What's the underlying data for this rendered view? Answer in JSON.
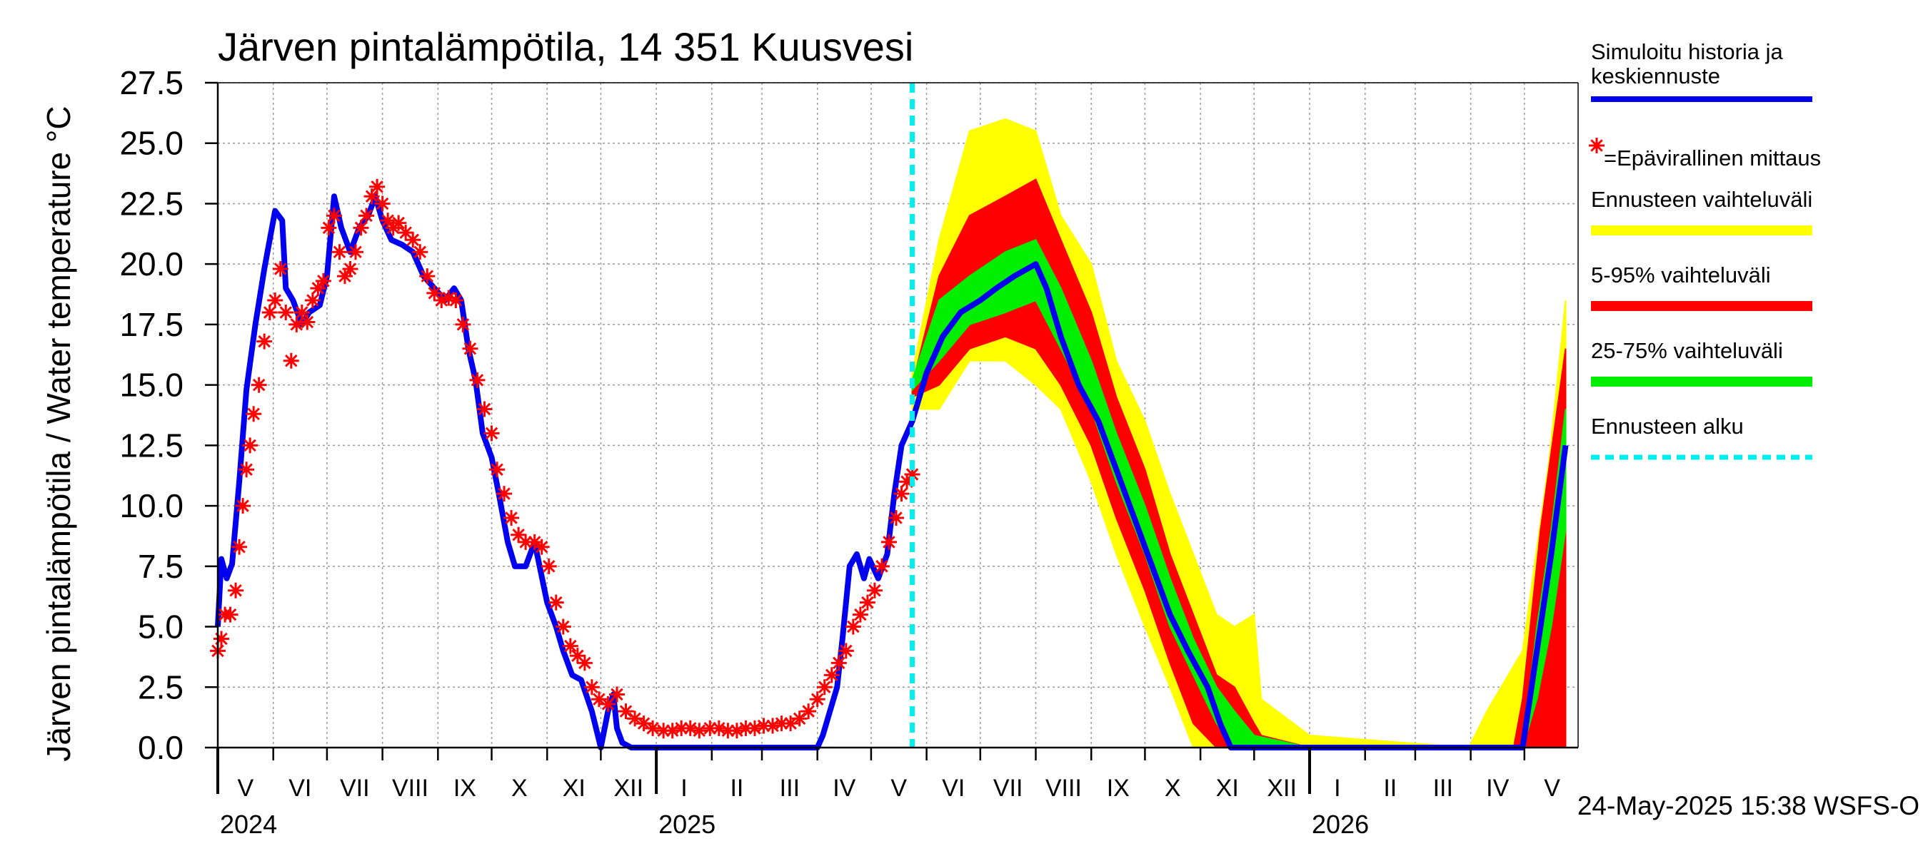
{
  "chart_data": {
    "type": "line",
    "title": "Järven pintalämpötila, 14 351 Kuusvesi",
    "ylabel": "Järven pintalämpötila / Water temperature °C",
    "xlabel": "",
    "ylim": [
      0,
      27.5
    ],
    "yticks": [
      "0.0",
      "2.5",
      "5.0",
      "7.5",
      "10.0",
      "12.5",
      "15.0",
      "17.5",
      "20.0",
      "22.5",
      "25.0",
      "27.5"
    ],
    "month_labels": [
      "V",
      "VI",
      "VII",
      "VIII",
      "IX",
      "X",
      "XI",
      "XII",
      "I",
      "II",
      "III",
      "IV",
      "V",
      "VI",
      "VII",
      "VIII",
      "IX",
      "X",
      "XI",
      "XII",
      "I",
      "II",
      "III",
      "IV",
      "V"
    ],
    "year_labels": [
      "2024",
      "2025",
      "2026"
    ],
    "forecast_start": "2025-05-24",
    "grid": true,
    "legend_position": "right",
    "legend": [
      {
        "label": "Simuloitu historia ja keskiennuste",
        "color": "#0000ee",
        "kind": "line"
      },
      {
        "label": "=Epävirallinen mittaus",
        "color": "#ff0000",
        "kind": "marker"
      },
      {
        "label": "Ennusteen vaihteluväli",
        "color": "#ffff00",
        "kind": "band"
      },
      {
        "label": "5-95% vaihteluväli",
        "color": "#ff0000",
        "kind": "band"
      },
      {
        "label": "25-75% vaihteluväli",
        "color": "#00ee00",
        "kind": "band"
      },
      {
        "label": "Ennusteen alku",
        "color": "#00eeee",
        "kind": "dashed"
      }
    ],
    "series": [
      {
        "name": "Simuloitu historia ja keskiennuste",
        "color": "#0000ee",
        "points": [
          [
            "2024-05-01",
            5.0
          ],
          [
            "2024-05-03",
            7.8
          ],
          [
            "2024-05-06",
            7.0
          ],
          [
            "2024-05-09",
            7.6
          ],
          [
            "2024-05-13",
            11.0
          ],
          [
            "2024-05-17",
            14.8
          ],
          [
            "2024-05-22",
            17.5
          ],
          [
            "2024-05-27",
            19.8
          ],
          [
            "2024-06-02",
            22.2
          ],
          [
            "2024-06-06",
            21.8
          ],
          [
            "2024-06-08",
            19.0
          ],
          [
            "2024-06-12",
            18.5
          ],
          [
            "2024-06-17",
            17.5
          ],
          [
            "2024-06-21",
            18.0
          ],
          [
            "2024-06-27",
            18.3
          ],
          [
            "2024-07-01",
            19.5
          ],
          [
            "2024-07-05",
            22.8
          ],
          [
            "2024-07-09",
            21.5
          ],
          [
            "2024-07-14",
            20.5
          ],
          [
            "2024-07-19",
            21.5
          ],
          [
            "2024-07-24",
            22.0
          ],
          [
            "2024-07-28",
            22.8
          ],
          [
            "2024-08-01",
            21.8
          ],
          [
            "2024-08-06",
            21.0
          ],
          [
            "2024-08-12",
            20.8
          ],
          [
            "2024-08-18",
            20.5
          ],
          [
            "2024-08-24",
            19.5
          ],
          [
            "2024-08-30",
            19.0
          ],
          [
            "2024-09-05",
            18.5
          ],
          [
            "2024-09-10",
            19.0
          ],
          [
            "2024-09-14",
            18.5
          ],
          [
            "2024-09-18",
            16.5
          ],
          [
            "2024-09-22",
            15.2
          ],
          [
            "2024-09-26",
            13.0
          ],
          [
            "2024-10-01",
            12.0
          ],
          [
            "2024-10-05",
            10.5
          ],
          [
            "2024-10-10",
            8.5
          ],
          [
            "2024-10-14",
            7.5
          ],
          [
            "2024-10-20",
            7.5
          ],
          [
            "2024-10-25",
            8.5
          ],
          [
            "2024-11-01",
            6.0
          ],
          [
            "2024-11-06",
            5.0
          ],
          [
            "2024-11-10",
            4.0
          ],
          [
            "2024-11-15",
            3.0
          ],
          [
            "2024-11-20",
            2.8
          ],
          [
            "2024-11-26",
            1.5
          ],
          [
            "2024-12-01",
            0.0
          ],
          [
            "2024-12-05",
            1.5
          ],
          [
            "2024-12-08",
            2.2
          ],
          [
            "2024-12-10",
            0.8
          ],
          [
            "2024-12-13",
            0.2
          ],
          [
            "2024-12-18",
            0.0
          ],
          [
            "2025-01-01",
            0.0
          ],
          [
            "2025-02-01",
            0.0
          ],
          [
            "2025-03-01",
            0.0
          ],
          [
            "2025-04-01",
            0.0
          ],
          [
            "2025-04-04",
            0.5
          ],
          [
            "2025-04-08",
            1.5
          ],
          [
            "2025-04-12",
            2.5
          ],
          [
            "2025-04-15",
            4.5
          ],
          [
            "2025-04-19",
            7.5
          ],
          [
            "2025-04-23",
            8.0
          ],
          [
            "2025-04-27",
            7.0
          ],
          [
            "2025-04-30",
            7.8
          ],
          [
            "2025-05-05",
            7.0
          ],
          [
            "2025-05-10",
            8.0
          ],
          [
            "2025-05-14",
            10.5
          ],
          [
            "2025-05-18",
            12.5
          ],
          [
            "2025-05-24",
            13.5
          ],
          [
            "2025-06-01",
            15.5
          ],
          [
            "2025-06-10",
            17.0
          ],
          [
            "2025-06-20",
            18.0
          ],
          [
            "2025-07-01",
            18.5
          ],
          [
            "2025-07-10",
            19.0
          ],
          [
            "2025-07-20",
            19.5
          ],
          [
            "2025-08-01",
            20.0
          ],
          [
            "2025-08-07",
            19.0
          ],
          [
            "2025-08-15",
            17.0
          ],
          [
            "2025-08-25",
            15.0
          ],
          [
            "2025-09-05",
            13.5
          ],
          [
            "2025-09-15",
            11.5
          ],
          [
            "2025-09-25",
            9.5
          ],
          [
            "2025-10-05",
            7.5
          ],
          [
            "2025-10-15",
            5.5
          ],
          [
            "2025-10-25",
            4.0
          ],
          [
            "2025-11-05",
            2.5
          ],
          [
            "2025-11-12",
            1.0
          ],
          [
            "2025-11-18",
            0.0
          ],
          [
            "2025-12-01",
            0.0
          ],
          [
            "2026-01-01",
            0.0
          ],
          [
            "2026-02-01",
            0.0
          ],
          [
            "2026-03-01",
            0.0
          ],
          [
            "2026-04-01",
            0.0
          ],
          [
            "2026-04-30",
            0.0
          ],
          [
            "2026-05-08",
            4.0
          ],
          [
            "2026-05-16",
            8.0
          ],
          [
            "2026-05-24",
            12.5
          ]
        ]
      }
    ],
    "bands": [
      {
        "name": "Ennusteen vaihteluväli",
        "color": "#ffff00",
        "x": [
          "2025-05-24",
          "2025-06-08",
          "2025-06-25",
          "2025-07-15",
          "2025-08-01",
          "2025-08-15",
          "2025-09-01",
          "2025-09-15",
          "2025-10-01",
          "2025-10-15",
          "2025-10-28",
          "2025-11-10",
          "2025-11-20",
          "2025-12-01",
          "2025-12-05",
          "2026-01-01",
          "2026-03-31",
          "2026-04-10",
          "2026-04-30",
          "2026-05-15",
          "2026-05-24"
        ],
        "lower": [
          14.0,
          14.0,
          16.0,
          16.0,
          15.0,
          14.0,
          11.0,
          8.0,
          5.0,
          2.5,
          0.0,
          0.0,
          0.0,
          0.0,
          0.0,
          0.0,
          0.0,
          0.0,
          0.0,
          0.0,
          0.0
        ],
        "upper": [
          15.5,
          21.0,
          25.5,
          26.0,
          25.5,
          22.0,
          20.0,
          16.0,
          13.5,
          10.5,
          8.0,
          5.5,
          5.0,
          5.5,
          2.0,
          0.5,
          0.0,
          1.5,
          4.0,
          12.0,
          18.5
        ]
      },
      {
        "name": "5-95% vaihteluväli",
        "color": "#ff0000",
        "x": [
          "2025-05-24",
          "2025-06-08",
          "2025-06-25",
          "2025-07-15",
          "2025-08-01",
          "2025-08-15",
          "2025-09-01",
          "2025-09-15",
          "2025-10-01",
          "2025-10-15",
          "2025-10-28",
          "2025-11-10",
          "2025-11-20",
          "2025-12-01",
          "2025-12-05",
          "2026-01-01",
          "2026-04-25",
          "2026-04-30",
          "2026-05-10",
          "2026-05-24"
        ],
        "lower": [
          14.5,
          15.0,
          16.5,
          17.0,
          16.5,
          15.0,
          12.5,
          9.5,
          6.5,
          3.5,
          1.0,
          0.0,
          0.0,
          0.0,
          0.0,
          0.0,
          0.0,
          0.0,
          0.0,
          0.0
        ],
        "upper": [
          15.0,
          19.5,
          22.0,
          22.8,
          23.5,
          21.0,
          18.0,
          14.5,
          11.5,
          8.0,
          5.5,
          3.0,
          2.5,
          1.0,
          0.5,
          0.0,
          0.0,
          2.0,
          9.0,
          16.5
        ]
      },
      {
        "name": "25-75% vaihteluväli",
        "color": "#00ee00",
        "x": [
          "2025-05-24",
          "2025-06-08",
          "2025-06-25",
          "2025-07-15",
          "2025-08-01",
          "2025-08-15",
          "2025-09-01",
          "2025-09-15",
          "2025-10-01",
          "2025-10-15",
          "2025-10-28",
          "2025-11-10",
          "2025-11-20",
          "2025-12-01",
          "2026-01-01",
          "2026-04-30",
          "2026-05-08",
          "2026-05-16",
          "2026-05-24"
        ],
        "lower": [
          14.8,
          16.0,
          17.5,
          18.0,
          18.5,
          16.5,
          14.0,
          11.0,
          8.0,
          5.0,
          3.0,
          1.0,
          0.0,
          0.0,
          0.0,
          0.0,
          2.0,
          5.0,
          9.0
        ],
        "upper": [
          15.2,
          18.5,
          19.5,
          20.5,
          21.0,
          19.0,
          16.0,
          13.0,
          10.0,
          7.0,
          4.5,
          2.5,
          1.5,
          0.5,
          0.0,
          0.0,
          5.0,
          9.0,
          14.0
        ]
      }
    ],
    "markers": {
      "name": "=Epävirallinen mittaus",
      "color": "#ff0000",
      "points": [
        [
          "2024-05-01",
          4.0
        ],
        [
          "2024-05-03",
          4.5
        ],
        [
          "2024-05-05",
          5.5
        ],
        [
          "2024-05-08",
          5.5
        ],
        [
          "2024-05-11",
          6.5
        ],
        [
          "2024-05-13",
          8.3
        ],
        [
          "2024-05-15",
          10.0
        ],
        [
          "2024-05-17",
          11.5
        ],
        [
          "2024-05-19",
          12.5
        ],
        [
          "2024-05-21",
          13.8
        ],
        [
          "2024-05-24",
          15.0
        ],
        [
          "2024-05-27",
          16.8
        ],
        [
          "2024-05-30",
          18.0
        ],
        [
          "2024-06-02",
          18.5
        ],
        [
          "2024-06-05",
          19.8
        ],
        [
          "2024-06-08",
          18.0
        ],
        [
          "2024-06-11",
          16.0
        ],
        [
          "2024-06-14",
          17.5
        ],
        [
          "2024-06-17",
          18.0
        ],
        [
          "2024-06-20",
          17.6
        ],
        [
          "2024-06-23",
          18.5
        ],
        [
          "2024-06-26",
          19.0
        ],
        [
          "2024-06-29",
          19.3
        ],
        [
          "2024-07-02",
          21.5
        ],
        [
          "2024-07-05",
          22.0
        ],
        [
          "2024-07-08",
          20.5
        ],
        [
          "2024-07-11",
          19.5
        ],
        [
          "2024-07-14",
          19.8
        ],
        [
          "2024-07-17",
          20.5
        ],
        [
          "2024-07-20",
          21.5
        ],
        [
          "2024-07-23",
          22.0
        ],
        [
          "2024-07-26",
          22.8
        ],
        [
          "2024-07-29",
          23.2
        ],
        [
          "2024-08-01",
          22.5
        ],
        [
          "2024-08-04",
          21.8
        ],
        [
          "2024-08-07",
          21.5
        ],
        [
          "2024-08-10",
          21.7
        ],
        [
          "2024-08-14",
          21.3
        ],
        [
          "2024-08-18",
          21.0
        ],
        [
          "2024-08-22",
          20.5
        ],
        [
          "2024-08-26",
          19.5
        ],
        [
          "2024-08-30",
          18.8
        ],
        [
          "2024-09-03",
          18.5
        ],
        [
          "2024-09-07",
          18.6
        ],
        [
          "2024-09-11",
          18.5
        ],
        [
          "2024-09-15",
          17.5
        ],
        [
          "2024-09-19",
          16.5
        ],
        [
          "2024-09-23",
          15.2
        ],
        [
          "2024-09-27",
          14.0
        ],
        [
          "2024-10-01",
          13.0
        ],
        [
          "2024-10-04",
          11.5
        ],
        [
          "2024-10-08",
          10.5
        ],
        [
          "2024-10-12",
          9.5
        ],
        [
          "2024-10-16",
          8.8
        ],
        [
          "2024-10-20",
          8.5
        ],
        [
          "2024-10-25",
          8.5
        ],
        [
          "2024-10-29",
          8.3
        ],
        [
          "2024-11-02",
          7.5
        ],
        [
          "2024-11-06",
          6.0
        ],
        [
          "2024-11-10",
          5.0
        ],
        [
          "2024-11-14",
          4.2
        ],
        [
          "2024-11-18",
          3.8
        ],
        [
          "2024-11-22",
          3.5
        ],
        [
          "2024-11-26",
          2.5
        ],
        [
          "2024-11-30",
          2.0
        ],
        [
          "2024-12-05",
          1.8
        ],
        [
          "2024-12-10",
          2.2
        ],
        [
          "2024-12-15",
          1.5
        ],
        [
          "2024-12-20",
          1.2
        ],
        [
          "2024-12-25",
          1.0
        ],
        [
          "2024-12-30",
          0.8
        ],
        [
          "2025-01-05",
          0.7
        ],
        [
          "2025-01-10",
          0.7
        ],
        [
          "2025-01-15",
          0.8
        ],
        [
          "2025-01-20",
          0.8
        ],
        [
          "2025-01-25",
          0.7
        ],
        [
          "2025-01-31",
          0.8
        ],
        [
          "2025-02-05",
          0.8
        ],
        [
          "2025-02-10",
          0.7
        ],
        [
          "2025-02-15",
          0.7
        ],
        [
          "2025-02-20",
          0.8
        ],
        [
          "2025-02-25",
          0.8
        ],
        [
          "2025-03-02",
          0.9
        ],
        [
          "2025-03-07",
          0.9
        ],
        [
          "2025-03-12",
          1.0
        ],
        [
          "2025-03-17",
          1.0
        ],
        [
          "2025-03-22",
          1.2
        ],
        [
          "2025-03-27",
          1.5
        ],
        [
          "2025-04-01",
          2.0
        ],
        [
          "2025-04-05",
          2.5
        ],
        [
          "2025-04-09",
          3.0
        ],
        [
          "2025-04-13",
          3.5
        ],
        [
          "2025-04-17",
          4.0
        ],
        [
          "2025-04-21",
          5.0
        ],
        [
          "2025-04-25",
          5.5
        ],
        [
          "2025-04-29",
          6.0
        ],
        [
          "2025-05-03",
          6.5
        ],
        [
          "2025-05-07",
          7.5
        ],
        [
          "2025-05-11",
          8.5
        ],
        [
          "2025-05-15",
          9.5
        ],
        [
          "2025-05-18",
          10.5
        ],
        [
          "2025-05-21",
          11.0
        ],
        [
          "2025-05-24",
          11.3
        ]
      ]
    }
  },
  "footer": {
    "timestamp": "24-May-2025 15:38 WSFS-O"
  }
}
